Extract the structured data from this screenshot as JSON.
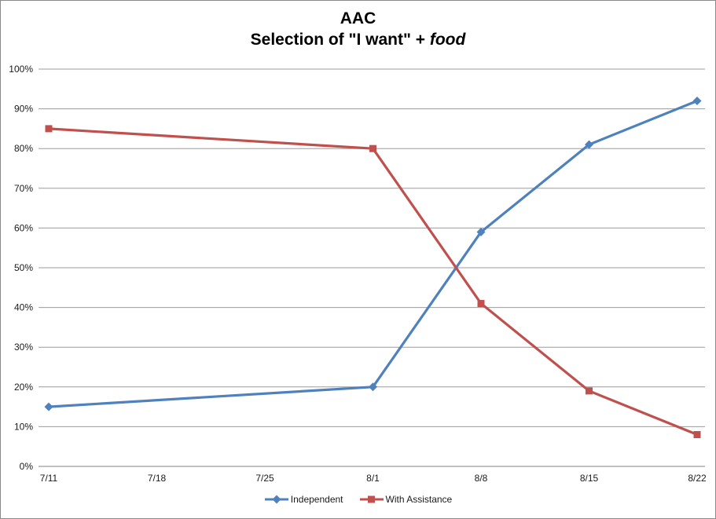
{
  "title": {
    "line1": "AAC",
    "line2_prefix": "Selection of \"I want\" + ",
    "line2_italic": "food"
  },
  "colors": {
    "independent": "#4F81BD",
    "assistance": "#C0504D",
    "gridline": "#9c9c9c",
    "axis_line": "#808080",
    "tick_text": "#1a1a1a",
    "border": "#8a8a8a",
    "background": "#ffffff"
  },
  "chart_data": {
    "type": "line",
    "title": "AAC",
    "subtitle": "Selection of \"I want\" + food",
    "categories": [
      "7/11",
      "7/18",
      "7/25",
      "8/1",
      "8/8",
      "8/15",
      "8/22"
    ],
    "series": [
      {
        "name": "Independent",
        "marker": "diamond",
        "color": "#4F81BD",
        "points": [
          {
            "x": "7/11",
            "y": 15
          },
          {
            "x": "8/1",
            "y": 20
          },
          {
            "x": "8/8",
            "y": 59
          },
          {
            "x": "8/15",
            "y": 81
          },
          {
            "x": "8/22",
            "y": 92
          }
        ]
      },
      {
        "name": "With Assistance",
        "marker": "square",
        "color": "#C0504D",
        "points": [
          {
            "x": "7/11",
            "y": 85
          },
          {
            "x": "8/1",
            "y": 80
          },
          {
            "x": "8/8",
            "y": 41
          },
          {
            "x": "8/15",
            "y": 19
          },
          {
            "x": "8/22",
            "y": 8
          }
        ]
      }
    ],
    "y_axis": {
      "min": 0,
      "max": 100,
      "step": 10,
      "format": "percent"
    },
    "y_ticks": [
      {
        "value": 0,
        "label": "0%"
      },
      {
        "value": 10,
        "label": "10%"
      },
      {
        "value": 20,
        "label": "20%"
      },
      {
        "value": 30,
        "label": "30%"
      },
      {
        "value": 40,
        "label": "40%"
      },
      {
        "value": 50,
        "label": "50%"
      },
      {
        "value": 60,
        "label": "60%"
      },
      {
        "value": 70,
        "label": "70%"
      },
      {
        "value": 80,
        "label": "80%"
      },
      {
        "value": 90,
        "label": "90%"
      },
      {
        "value": 100,
        "label": "100%"
      }
    ],
    "grid": true,
    "legend_position": "bottom"
  }
}
